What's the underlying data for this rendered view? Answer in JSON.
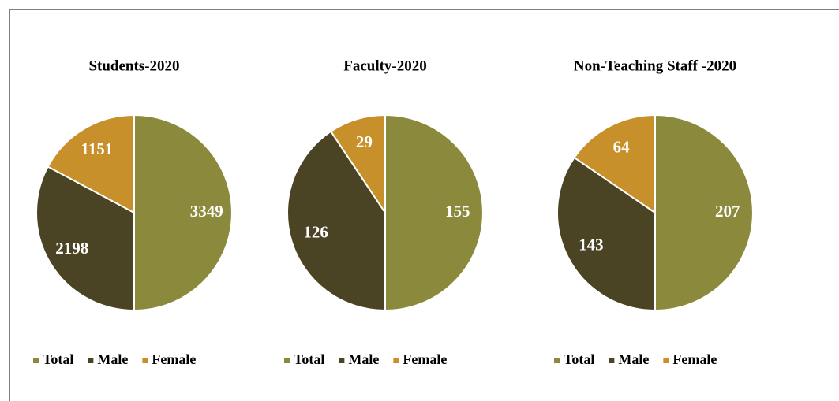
{
  "chart_data": [
    {
      "type": "pie",
      "title": "Students-2020",
      "categories": [
        "Total",
        "Male",
        "Female"
      ],
      "values": [
        3349,
        2198,
        1151
      ],
      "colors": [
        "#8b8a3c",
        "#4a4424",
        "#c8902a"
      ]
    },
    {
      "type": "pie",
      "title": "Faculty-2020",
      "categories": [
        "Total",
        "Male",
        "Female"
      ],
      "values": [
        155,
        126,
        29
      ],
      "colors": [
        "#8b8a3c",
        "#4a4424",
        "#c8902a"
      ]
    },
    {
      "type": "pie",
      "title": "Non-Teaching Staff -2020",
      "categories": [
        "Total",
        "Male",
        "Female"
      ],
      "values": [
        207,
        143,
        64
      ],
      "colors": [
        "#8b8a3c",
        "#4a4424",
        "#c8902a"
      ]
    }
  ]
}
